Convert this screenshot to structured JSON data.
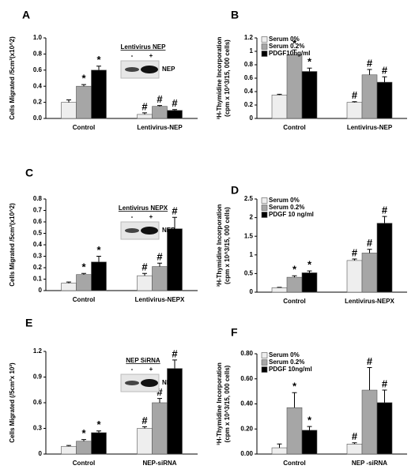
{
  "chart_data": [
    {
      "panel": "A",
      "type": "bar",
      "ylabel": [
        "Cells Migrated /5cm²(x10^2)"
      ],
      "categories": [
        "Control",
        "Lentivirus-NEP"
      ],
      "series": [
        {
          "color": "#eeeeee",
          "values": [
            0.2,
            0.05
          ],
          "errors": [
            0.03,
            0.02
          ],
          "sig": [
            null,
            "#"
          ]
        },
        {
          "color": "#a6a6a6",
          "values": [
            0.4,
            0.15
          ],
          "errors": [
            0.02,
            0.01
          ],
          "sig": [
            "*",
            "#"
          ]
        },
        {
          "color": "#000000",
          "values": [
            0.6,
            0.1
          ],
          "errors": [
            0.05,
            0.01
          ],
          "sig": [
            "*",
            "#"
          ]
        }
      ],
      "ylim": [
        0,
        1
      ],
      "yticks": [
        {
          "value": 0,
          "label": "0.0"
        },
        0.2,
        0.4,
        0.6,
        0.8,
        {
          "value": 1,
          "label": "1.0"
        }
      ],
      "inset": {
        "title": "Lentivirus NEP",
        "lanes": [
          "-",
          "+"
        ],
        "label": "NEP"
      }
    },
    {
      "panel": "B",
      "type": "bar",
      "ylabel": [
        "³H-Thymidine Incorporation",
        "(cpm x 10^3/15, 000 cells)"
      ],
      "categories": [
        "Control",
        "Lentivirus-NEP"
      ],
      "series": [
        {
          "name": "Serum 0%",
          "color": "#eeeeee",
          "values": [
            0.35,
            0.24
          ],
          "errors": [
            0.01,
            0.01
          ],
          "sig": [
            null,
            "#"
          ]
        },
        {
          "name": "Serum 0.2%",
          "color": "#a6a6a6",
          "values": [
            0.95,
            0.65
          ],
          "errors": [
            0.07,
            0.08
          ],
          "sig": [
            "*",
            "#"
          ]
        },
        {
          "name": "PDGF10ng/ml",
          "color": "#000000",
          "values": [
            0.7,
            0.54
          ],
          "errors": [
            0.05,
            0.08
          ],
          "sig": [
            "*",
            "#"
          ]
        }
      ],
      "ylim": [
        0,
        1.2
      ],
      "yticks": [
        0,
        0.2,
        0.4,
        0.6,
        0.8,
        1,
        1.2
      ],
      "legend": "upper left"
    },
    {
      "panel": "C",
      "type": "bar",
      "ylabel": [
        "Cells Migrated /5cm²(x10^2)"
      ],
      "categories": [
        "Control",
        "Lentivirus-NEPX"
      ],
      "series": [
        {
          "color": "#eeeeee",
          "values": [
            0.065,
            0.13
          ],
          "errors": [
            0.01,
            0.02
          ],
          "sig": [
            null,
            "#"
          ]
        },
        {
          "color": "#a6a6a6",
          "values": [
            0.14,
            0.21
          ],
          "errors": [
            0.01,
            0.03
          ],
          "sig": [
            "*",
            "#"
          ]
        },
        {
          "color": "#000000",
          "values": [
            0.25,
            0.54
          ],
          "errors": [
            0.05,
            0.1
          ],
          "sig": [
            "*",
            "#"
          ]
        }
      ],
      "ylim": [
        0,
        0.8
      ],
      "yticks": [
        0,
        0.1,
        0.2,
        0.3,
        0.4,
        0.5,
        0.6,
        0.7,
        0.8
      ],
      "inset": {
        "title": "Lentivirus NEPX",
        "lanes": [
          "-",
          "+"
        ],
        "label": "NEP"
      }
    },
    {
      "panel": "D",
      "type": "bar",
      "ylabel": [
        "³H-Thymidine Incorporation",
        "(cpm x 10^3/15, 000 cells)"
      ],
      "categories": [
        "Control",
        "Lentivirus-NEPX"
      ],
      "series": [
        {
          "name": "Serum 0%",
          "color": "#eeeeee",
          "values": [
            0.12,
            0.85
          ],
          "errors": [
            0.01,
            0.04
          ],
          "sig": [
            null,
            "#"
          ]
        },
        {
          "name": "Serum 0.2%",
          "color": "#a6a6a6",
          "values": [
            0.4,
            1.05
          ],
          "errors": [
            0.04,
            0.1
          ],
          "sig": [
            "*",
            "#"
          ]
        },
        {
          "name": "PDGF 10 ng/ml",
          "color": "#000000",
          "values": [
            0.52,
            1.85
          ],
          "errors": [
            0.05,
            0.18
          ],
          "sig": [
            "*",
            "#"
          ]
        }
      ],
      "ylim": [
        0,
        2.5
      ],
      "yticks": [
        0,
        0.5,
        1,
        1.5,
        2,
        2.5
      ],
      "legend": "upper left"
    },
    {
      "panel": "E",
      "type": "bar",
      "ylabel": [
        "Cells Migrated (/5cm²x 10²)"
      ],
      "categories": [
        "Control",
        "NEP-siRNA"
      ],
      "series": [
        {
          "color": "#eeeeee",
          "values": [
            0.09,
            0.3
          ],
          "errors": [
            0.01,
            0.02
          ],
          "sig": [
            null,
            "#"
          ]
        },
        {
          "color": "#a6a6a6",
          "values": [
            0.15,
            0.6
          ],
          "errors": [
            0.02,
            0.05
          ],
          "sig": [
            "*",
            "#"
          ]
        },
        {
          "color": "#000000",
          "values": [
            0.25,
            1.0
          ],
          "errors": [
            0.02,
            0.1
          ],
          "sig": [
            "*",
            "#"
          ]
        }
      ],
      "ylim": [
        0,
        1.2
      ],
      "yticks": [
        0,
        0.3,
        0.6,
        0.9,
        1.2
      ],
      "inset": {
        "title": "NEP SiRNA",
        "lanes": [
          "-",
          "+"
        ],
        "label": "NEP"
      }
    },
    {
      "panel": "F",
      "type": "bar",
      "ylabel": [
        "³H-Thymidine Incorporation",
        "(cpm x 10^3/15, 000 cells)"
      ],
      "categories": [
        "Control",
        "NEP -siRNA"
      ],
      "series": [
        {
          "name": "Serum 0%",
          "color": "#eeeeee",
          "values": [
            0.05,
            0.08
          ],
          "errors": [
            0.03,
            0.01
          ],
          "sig": [
            null,
            "#"
          ]
        },
        {
          "name": "Serum 0.2%",
          "color": "#a6a6a6",
          "values": [
            0.37,
            0.51
          ],
          "errors": [
            0.12,
            0.18
          ],
          "sig": [
            "*",
            "#"
          ]
        },
        {
          "name": "PDGF 10ng/ml",
          "color": "#000000",
          "values": [
            0.19,
            0.41
          ],
          "errors": [
            0.03,
            0.1
          ],
          "sig": [
            "*",
            "#"
          ]
        }
      ],
      "ylim": [
        0,
        0.8
      ],
      "yticks": [
        {
          "value": 0,
          "label": "0.00"
        },
        {
          "value": 0.2,
          "label": "0.20"
        },
        {
          "value": 0.4,
          "label": "0.40"
        },
        {
          "value": 0.6,
          "label": "0.60"
        },
        {
          "value": 0.8,
          "label": "0.80"
        }
      ],
      "legend": "upper left"
    }
  ]
}
